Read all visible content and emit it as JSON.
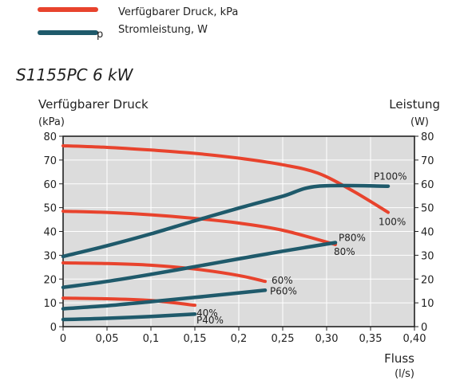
{
  "legend": {
    "pressure_label": "Verfügbarer Druck, kPa",
    "power_label": "Stromleistung, W",
    "power_marker": "p",
    "pressure_color": "#e8432d",
    "power_color": "#1f5a6b"
  },
  "model_title": "S1155PC 6 kW",
  "chart_data": {
    "type": "line",
    "title": "S1155PC 6 kW",
    "ylabel_left": "Verfügbarer Druck",
    "ylabel_left_unit": "(kPa)",
    "ylabel_right": "Leistung",
    "ylabel_right_unit": "(W)",
    "xlabel": "Fluss",
    "xlabel_unit": "(l/s)",
    "xlim": [
      0,
      0.4
    ],
    "ylim": [
      0,
      80
    ],
    "x_ticks": [
      "0",
      "0,05",
      "0,1",
      "0,15",
      "0,2",
      "0,25",
      "0,30",
      "0,35",
      "0,40"
    ],
    "y_ticks_left": [
      "0",
      "10",
      "20",
      "30",
      "40",
      "50",
      "60",
      "70",
      "80"
    ],
    "y_ticks_right": [
      "0",
      "10",
      "20",
      "30",
      "40",
      "50",
      "60",
      "70",
      "80"
    ],
    "grid": true,
    "plot_background": "#dcdcdc",
    "series": [
      {
        "name": "100%",
        "kind": "pressure",
        "points": [
          [
            0,
            76
          ],
          [
            0.05,
            75.3
          ],
          [
            0.1,
            74.2
          ],
          [
            0.15,
            72.8
          ],
          [
            0.2,
            70.8
          ],
          [
            0.25,
            68.0
          ],
          [
            0.29,
            64.5
          ],
          [
            0.33,
            57.0
          ],
          [
            0.37,
            48.0
          ]
        ]
      },
      {
        "name": "80%",
        "kind": "pressure",
        "points": [
          [
            0,
            48.5
          ],
          [
            0.05,
            48.0
          ],
          [
            0.1,
            47.0
          ],
          [
            0.15,
            45.5
          ],
          [
            0.2,
            43.5
          ],
          [
            0.25,
            40.5
          ],
          [
            0.31,
            34.5
          ]
        ]
      },
      {
        "name": "60%",
        "kind": "pressure",
        "points": [
          [
            0,
            26.8
          ],
          [
            0.05,
            26.5
          ],
          [
            0.1,
            25.8
          ],
          [
            0.15,
            24.2
          ],
          [
            0.2,
            21.5
          ],
          [
            0.23,
            19.0
          ]
        ]
      },
      {
        "name": "40%",
        "kind": "pressure",
        "points": [
          [
            0,
            12.0
          ],
          [
            0.05,
            11.7
          ],
          [
            0.1,
            11.0
          ],
          [
            0.15,
            9.0
          ]
        ]
      },
      {
        "name": "P100%",
        "kind": "power",
        "points": [
          [
            0,
            29.5
          ],
          [
            0.05,
            34.0
          ],
          [
            0.1,
            39.0
          ],
          [
            0.15,
            44.5
          ],
          [
            0.2,
            49.8
          ],
          [
            0.25,
            54.8
          ],
          [
            0.29,
            59.0
          ],
          [
            0.37,
            59.0
          ]
        ]
      },
      {
        "name": "P80%",
        "kind": "power",
        "points": [
          [
            0,
            16.5
          ],
          [
            0.05,
            19.0
          ],
          [
            0.1,
            22.0
          ],
          [
            0.15,
            25.2
          ],
          [
            0.2,
            28.5
          ],
          [
            0.25,
            31.7
          ],
          [
            0.31,
            35.3
          ]
        ]
      },
      {
        "name": "P60%",
        "kind": "power",
        "points": [
          [
            0,
            7.5
          ],
          [
            0.05,
            8.8
          ],
          [
            0.1,
            10.5
          ],
          [
            0.15,
            12.3
          ],
          [
            0.23,
            15.3
          ]
        ]
      },
      {
        "name": "P40%",
        "kind": "power",
        "points": [
          [
            0,
            3.0
          ],
          [
            0.05,
            3.5
          ],
          [
            0.1,
            4.3
          ],
          [
            0.15,
            5.3
          ]
        ]
      }
    ]
  }
}
